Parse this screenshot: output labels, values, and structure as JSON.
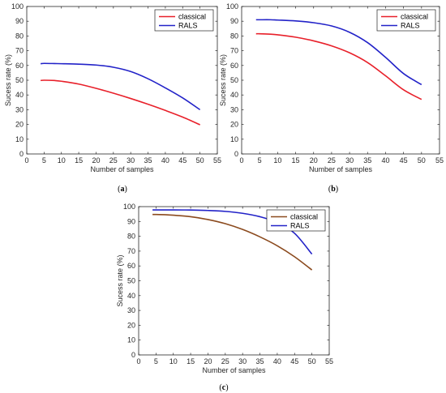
{
  "chart_data": [
    {
      "id": "a",
      "caption": "(a)",
      "caption_letter": "a",
      "type": "line",
      "xlabel": "Number of samples",
      "ylabel": "Sucess rate (%)",
      "xlim": [
        0,
        55
      ],
      "ylim": [
        0,
        100
      ],
      "xticks": [
        0,
        5,
        10,
        15,
        20,
        25,
        30,
        35,
        40,
        45,
        50,
        55
      ],
      "yticks": [
        0,
        10,
        20,
        30,
        40,
        50,
        60,
        70,
        80,
        90,
        100
      ],
      "legend_position": "top-right",
      "series": [
        {
          "name": "classical",
          "color": "#e8202a",
          "x": [
            4,
            5,
            8,
            10,
            15,
            20,
            25,
            30,
            35,
            40,
            45,
            50
          ],
          "y": [
            49.8,
            50,
            49.8,
            49.3,
            47.4,
            44.5,
            41.2,
            37.6,
            33.7,
            29.5,
            25,
            19.8
          ]
        },
        {
          "name": "RALS",
          "color": "#2222c8",
          "x": [
            4,
            5,
            8,
            10,
            15,
            20,
            25,
            30,
            35,
            40,
            45,
            50
          ],
          "y": [
            61.2,
            61.4,
            61.3,
            61.2,
            60.9,
            60.3,
            58.8,
            55.9,
            51,
            44.8,
            38,
            30
          ]
        }
      ]
    },
    {
      "id": "b",
      "caption": "(b)",
      "caption_letter": "b",
      "type": "line",
      "xlabel": "Number of samples",
      "ylabel": "Sucess rate (%)",
      "xlim": [
        0,
        55
      ],
      "ylim": [
        0,
        100
      ],
      "xticks": [
        0,
        5,
        10,
        15,
        20,
        25,
        30,
        35,
        40,
        45,
        50,
        55
      ],
      "yticks": [
        0,
        10,
        20,
        30,
        40,
        50,
        60,
        70,
        80,
        90,
        100
      ],
      "legend_position": "top-right",
      "series": [
        {
          "name": "classical",
          "color": "#e8202a",
          "x": [
            4,
            5,
            8,
            10,
            15,
            20,
            25,
            30,
            35,
            40,
            45,
            50
          ],
          "y": [
            81.5,
            81.5,
            81.2,
            80.8,
            79.2,
            76.7,
            73.3,
            68.6,
            62,
            53,
            43.5,
            37
          ]
        },
        {
          "name": "RALS",
          "color": "#2222c8",
          "x": [
            4,
            5,
            8,
            10,
            15,
            20,
            25,
            30,
            35,
            40,
            45,
            50
          ],
          "y": [
            91,
            91,
            91,
            90.8,
            90.2,
            89,
            86.8,
            82.5,
            75.5,
            65.5,
            54.5,
            47
          ]
        }
      ]
    },
    {
      "id": "c",
      "caption": "(c)",
      "caption_letter": "c",
      "type": "line",
      "xlabel": "Number of samples",
      "ylabel": "Sucess rate (%)",
      "xlim": [
        0,
        55
      ],
      "ylim": [
        0,
        100
      ],
      "xticks": [
        0,
        5,
        10,
        15,
        20,
        25,
        30,
        35,
        40,
        45,
        50,
        55
      ],
      "yticks": [
        0,
        10,
        20,
        30,
        40,
        50,
        60,
        70,
        80,
        90,
        100
      ],
      "legend_position": "top-right",
      "series": [
        {
          "name": "classical",
          "color": "#8b4a1e",
          "x": [
            4,
            5,
            8,
            10,
            15,
            20,
            25,
            30,
            35,
            40,
            45,
            50
          ],
          "y": [
            94.7,
            94.7,
            94.5,
            94.2,
            93.2,
            91.3,
            88.5,
            84.6,
            79.6,
            73.6,
            66.2,
            57.3
          ]
        },
        {
          "name": "RALS",
          "color": "#2222c8",
          "x": [
            4,
            5,
            8,
            10,
            15,
            20,
            25,
            30,
            35,
            40,
            45,
            50
          ],
          "y": [
            97.8,
            97.8,
            97.8,
            97.8,
            97.7,
            97.4,
            96.8,
            95.5,
            93.2,
            89.3,
            82,
            68
          ]
        }
      ]
    }
  ]
}
